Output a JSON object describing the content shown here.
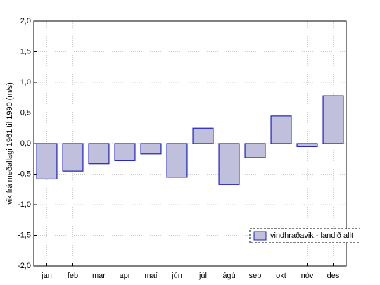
{
  "chart_data": {
    "type": "bar",
    "y_label": "vik frá meðallagi 1961 til 1990 (m/s)",
    "categories": [
      "jan",
      "feb",
      "mar",
      "apr",
      "maí",
      "jún",
      "júl",
      "ágú",
      "sep",
      "okt",
      "nóv",
      "des"
    ],
    "series": [
      {
        "name": "vindhraðavik - landið allt",
        "color": "#c0c0dc",
        "edge_color": "#2020c0",
        "values": [
          -0.58,
          -0.45,
          -0.33,
          -0.28,
          -0.17,
          -0.55,
          0.25,
          -0.67,
          -0.23,
          0.45,
          -0.05,
          0.78
        ]
      }
    ],
    "ylim": [
      -2.0,
      2.0
    ],
    "yticks": [
      {
        "value": -2.0,
        "label": "-2,0"
      },
      {
        "value": -1.5,
        "label": "-1,5"
      },
      {
        "value": -1.0,
        "label": "-1,0"
      },
      {
        "value": -0.5,
        "label": "-0,5"
      },
      {
        "value": 0.0,
        "label": "0,0"
      },
      {
        "value": 0.5,
        "label": "0,5"
      },
      {
        "value": 1.0,
        "label": "1,0"
      },
      {
        "value": 1.5,
        "label": "1,5"
      },
      {
        "value": 2.0,
        "label": "2,0"
      }
    ],
    "grid": true,
    "legend_position": "lower right"
  }
}
